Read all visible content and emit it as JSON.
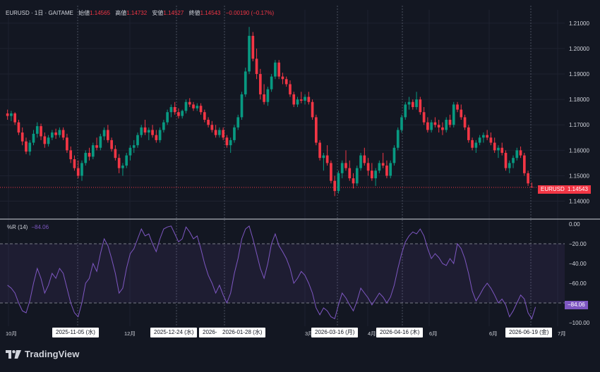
{
  "header": {
    "symbol": "EURUSD · 1日 · GAITAME",
    "open_label": "始値",
    "open_value": "1.14565",
    "high_label": "高値",
    "high_value": "1.14732",
    "low_label": "安値",
    "low_value": "1.14527",
    "close_label": "終値",
    "close_value": "1.14543",
    "change": "−0.00190 (−0.17%)"
  },
  "price_axis": {
    "ticks": [
      "1.21000",
      "1.20000",
      "1.19000",
      "1.18000",
      "1.17000",
      "1.16000",
      "1.15000",
      "1.14000"
    ],
    "min": 1.136,
    "max": 1.213
  },
  "last_price": {
    "symbol_tag": "EURUSD",
    "value": "1.14543",
    "numeric": 1.14543
  },
  "indicator": {
    "name": "%R (14)",
    "value": "−84.06",
    "ticks": [
      "0.00",
      "−20.00",
      "−40.00",
      "−60.00",
      "−80.00",
      "−100.00"
    ],
    "badge": "−84.06",
    "badge_numeric": -84.06,
    "upper_band": -20,
    "lower_band": -80,
    "min": -100,
    "max": 0
  },
  "time_axis": {
    "months": [
      "10月",
      "12月",
      "3月",
      "4月",
      "6月",
      "6月",
      "7月"
    ],
    "crosshair_dates": [
      "2025-11-05 (水)",
      "2025-12-24 (水)",
      "2026-",
      "2026-01-28 (水)",
      "2026-03-16 (月)",
      "2026-04-16 (木)",
      "2026-06-19 (金)"
    ]
  },
  "branding": {
    "logo_text": "TradingView"
  },
  "colors": {
    "up": "#089981",
    "down": "#f23645",
    "indicator": "#7e57c2",
    "background": "#131722"
  },
  "chart_data": {
    "type": "candlestick",
    "symbol": "EURUSD",
    "ohlc": [
      {
        "o": 1.1745,
        "h": 1.176,
        "l": 1.172,
        "c": 1.1735
      },
      {
        "o": 1.1735,
        "h": 1.1755,
        "l": 1.1715,
        "c": 1.1745
      },
      {
        "o": 1.1745,
        "h": 1.175,
        "l": 1.17,
        "c": 1.171
      },
      {
        "o": 1.171,
        "h": 1.172,
        "l": 1.166,
        "c": 1.167
      },
      {
        "o": 1.167,
        "h": 1.169,
        "l": 1.162,
        "c": 1.1635
      },
      {
        "o": 1.1635,
        "h": 1.165,
        "l": 1.1585,
        "c": 1.1595
      },
      {
        "o": 1.1595,
        "h": 1.164,
        "l": 1.158,
        "c": 1.163
      },
      {
        "o": 1.163,
        "h": 1.168,
        "l": 1.162,
        "c": 1.1665
      },
      {
        "o": 1.1665,
        "h": 1.171,
        "l": 1.165,
        "c": 1.1695
      },
      {
        "o": 1.1695,
        "h": 1.1705,
        "l": 1.164,
        "c": 1.1655
      },
      {
        "o": 1.1655,
        "h": 1.167,
        "l": 1.161,
        "c": 1.1625
      },
      {
        "o": 1.1625,
        "h": 1.166,
        "l": 1.1615,
        "c": 1.165
      },
      {
        "o": 1.165,
        "h": 1.168,
        "l": 1.164,
        "c": 1.167
      },
      {
        "o": 1.167,
        "h": 1.1685,
        "l": 1.1645,
        "c": 1.166
      },
      {
        "o": 1.166,
        "h": 1.169,
        "l": 1.165,
        "c": 1.168
      },
      {
        "o": 1.168,
        "h": 1.169,
        "l": 1.164,
        "c": 1.165
      },
      {
        "o": 1.165,
        "h": 1.1665,
        "l": 1.159,
        "c": 1.16
      },
      {
        "o": 1.16,
        "h": 1.1615,
        "l": 1.155,
        "c": 1.1565
      },
      {
        "o": 1.1565,
        "h": 1.158,
        "l": 1.152,
        "c": 1.153
      },
      {
        "o": 1.153,
        "h": 1.156,
        "l": 1.149,
        "c": 1.15
      },
      {
        "o": 1.15,
        "h": 1.156,
        "l": 1.148,
        "c": 1.155
      },
      {
        "o": 1.155,
        "h": 1.16,
        "l": 1.154,
        "c": 1.159
      },
      {
        "o": 1.159,
        "h": 1.161,
        "l": 1.156,
        "c": 1.1575
      },
      {
        "o": 1.1575,
        "h": 1.163,
        "l": 1.1565,
        "c": 1.162
      },
      {
        "o": 1.162,
        "h": 1.165,
        "l": 1.16,
        "c": 1.161
      },
      {
        "o": 1.161,
        "h": 1.1665,
        "l": 1.16,
        "c": 1.1655
      },
      {
        "o": 1.1655,
        "h": 1.169,
        "l": 1.164,
        "c": 1.168
      },
      {
        "o": 1.168,
        "h": 1.17,
        "l": 1.163,
        "c": 1.164
      },
      {
        "o": 1.164,
        "h": 1.165,
        "l": 1.1595,
        "c": 1.1605
      },
      {
        "o": 1.1605,
        "h": 1.162,
        "l": 1.156,
        "c": 1.157
      },
      {
        "o": 1.157,
        "h": 1.1585,
        "l": 1.151,
        "c": 1.153
      },
      {
        "o": 1.153,
        "h": 1.155,
        "l": 1.15,
        "c": 1.154
      },
      {
        "o": 1.154,
        "h": 1.159,
        "l": 1.153,
        "c": 1.158
      },
      {
        "o": 1.158,
        "h": 1.162,
        "l": 1.156,
        "c": 1.161
      },
      {
        "o": 1.161,
        "h": 1.164,
        "l": 1.159,
        "c": 1.162
      },
      {
        "o": 1.162,
        "h": 1.167,
        "l": 1.161,
        "c": 1.166
      },
      {
        "o": 1.166,
        "h": 1.17,
        "l": 1.165,
        "c": 1.169
      },
      {
        "o": 1.169,
        "h": 1.172,
        "l": 1.166,
        "c": 1.167
      },
      {
        "o": 1.167,
        "h": 1.169,
        "l": 1.164,
        "c": 1.168
      },
      {
        "o": 1.168,
        "h": 1.17,
        "l": 1.165,
        "c": 1.166
      },
      {
        "o": 1.166,
        "h": 1.168,
        "l": 1.163,
        "c": 1.164
      },
      {
        "o": 1.164,
        "h": 1.169,
        "l": 1.163,
        "c": 1.168
      },
      {
        "o": 1.168,
        "h": 1.172,
        "l": 1.167,
        "c": 1.171
      },
      {
        "o": 1.171,
        "h": 1.176,
        "l": 1.17,
        "c": 1.175
      },
      {
        "o": 1.175,
        "h": 1.178,
        "l": 1.173,
        "c": 1.177
      },
      {
        "o": 1.177,
        "h": 1.179,
        "l": 1.174,
        "c": 1.175
      },
      {
        "o": 1.175,
        "h": 1.1765,
        "l": 1.1725,
        "c": 1.1735
      },
      {
        "o": 1.1735,
        "h": 1.176,
        "l": 1.1725,
        "c": 1.1755
      },
      {
        "o": 1.1755,
        "h": 1.18,
        "l": 1.1745,
        "c": 1.179
      },
      {
        "o": 1.179,
        "h": 1.1805,
        "l": 1.177,
        "c": 1.178
      },
      {
        "o": 1.178,
        "h": 1.179,
        "l": 1.1755,
        "c": 1.1765
      },
      {
        "o": 1.1765,
        "h": 1.1785,
        "l": 1.1755,
        "c": 1.1775
      },
      {
        "o": 1.1775,
        "h": 1.1785,
        "l": 1.174,
        "c": 1.175
      },
      {
        "o": 1.175,
        "h": 1.176,
        "l": 1.171,
        "c": 1.172
      },
      {
        "o": 1.172,
        "h": 1.173,
        "l": 1.169,
        "c": 1.17
      },
      {
        "o": 1.17,
        "h": 1.1715,
        "l": 1.167,
        "c": 1.168
      },
      {
        "o": 1.168,
        "h": 1.17,
        "l": 1.165,
        "c": 1.166
      },
      {
        "o": 1.166,
        "h": 1.169,
        "l": 1.165,
        "c": 1.168
      },
      {
        "o": 1.168,
        "h": 1.169,
        "l": 1.164,
        "c": 1.165
      },
      {
        "o": 1.165,
        "h": 1.166,
        "l": 1.161,
        "c": 1.162
      },
      {
        "o": 1.162,
        "h": 1.165,
        "l": 1.159,
        "c": 1.164
      },
      {
        "o": 1.164,
        "h": 1.17,
        "l": 1.163,
        "c": 1.169
      },
      {
        "o": 1.169,
        "h": 1.174,
        "l": 1.168,
        "c": 1.173
      },
      {
        "o": 1.173,
        "h": 1.183,
        "l": 1.172,
        "c": 1.182
      },
      {
        "o": 1.182,
        "h": 1.1925,
        "l": 1.181,
        "c": 1.191
      },
      {
        "o": 1.191,
        "h": 1.2085,
        "l": 1.19,
        "c": 1.205
      },
      {
        "o": 1.205,
        "h": 1.2065,
        "l": 1.195,
        "c": 1.196
      },
      {
        "o": 1.196,
        "h": 1.2,
        "l": 1.188,
        "c": 1.19
      },
      {
        "o": 1.19,
        "h": 1.192,
        "l": 1.18,
        "c": 1.182
      },
      {
        "o": 1.182,
        "h": 1.186,
        "l": 1.178,
        "c": 1.179
      },
      {
        "o": 1.179,
        "h": 1.185,
        "l": 1.1775,
        "c": 1.184
      },
      {
        "o": 1.184,
        "h": 1.19,
        "l": 1.183,
        "c": 1.189
      },
      {
        "o": 1.189,
        "h": 1.1955,
        "l": 1.188,
        "c": 1.1945
      },
      {
        "o": 1.1945,
        "h": 1.1955,
        "l": 1.188,
        "c": 1.189
      },
      {
        "o": 1.189,
        "h": 1.1905,
        "l": 1.186,
        "c": 1.188
      },
      {
        "o": 1.188,
        "h": 1.189,
        "l": 1.185,
        "c": 1.186
      },
      {
        "o": 1.186,
        "h": 1.1875,
        "l": 1.181,
        "c": 1.182
      },
      {
        "o": 1.182,
        "h": 1.183,
        "l": 1.177,
        "c": 1.178
      },
      {
        "o": 1.178,
        "h": 1.181,
        "l": 1.177,
        "c": 1.18
      },
      {
        "o": 1.18,
        "h": 1.183,
        "l": 1.1785,
        "c": 1.1795
      },
      {
        "o": 1.1795,
        "h": 1.182,
        "l": 1.178,
        "c": 1.181
      },
      {
        "o": 1.181,
        "h": 1.183,
        "l": 1.178,
        "c": 1.179
      },
      {
        "o": 1.179,
        "h": 1.18,
        "l": 1.172,
        "c": 1.173
      },
      {
        "o": 1.173,
        "h": 1.174,
        "l": 1.162,
        "c": 1.163
      },
      {
        "o": 1.163,
        "h": 1.164,
        "l": 1.156,
        "c": 1.157
      },
      {
        "o": 1.157,
        "h": 1.159,
        "l": 1.152,
        "c": 1.158
      },
      {
        "o": 1.158,
        "h": 1.162,
        "l": 1.154,
        "c": 1.155
      },
      {
        "o": 1.155,
        "h": 1.156,
        "l": 1.147,
        "c": 1.148
      },
      {
        "o": 1.148,
        "h": 1.15,
        "l": 1.142,
        "c": 1.144
      },
      {
        "o": 1.144,
        "h": 1.152,
        "l": 1.143,
        "c": 1.151
      },
      {
        "o": 1.151,
        "h": 1.156,
        "l": 1.149,
        "c": 1.155
      },
      {
        "o": 1.155,
        "h": 1.16,
        "l": 1.152,
        "c": 1.153
      },
      {
        "o": 1.153,
        "h": 1.156,
        "l": 1.148,
        "c": 1.149
      },
      {
        "o": 1.149,
        "h": 1.151,
        "l": 1.145,
        "c": 1.147
      },
      {
        "o": 1.147,
        "h": 1.154,
        "l": 1.146,
        "c": 1.153
      },
      {
        "o": 1.153,
        "h": 1.159,
        "l": 1.152,
        "c": 1.158
      },
      {
        "o": 1.158,
        "h": 1.161,
        "l": 1.154,
        "c": 1.155
      },
      {
        "o": 1.155,
        "h": 1.157,
        "l": 1.15,
        "c": 1.152
      },
      {
        "o": 1.152,
        "h": 1.155,
        "l": 1.148,
        "c": 1.149
      },
      {
        "o": 1.149,
        "h": 1.153,
        "l": 1.146,
        "c": 1.152
      },
      {
        "o": 1.152,
        "h": 1.156,
        "l": 1.151,
        "c": 1.155
      },
      {
        "o": 1.155,
        "h": 1.159,
        "l": 1.153,
        "c": 1.154
      },
      {
        "o": 1.154,
        "h": 1.156,
        "l": 1.149,
        "c": 1.15
      },
      {
        "o": 1.15,
        "h": 1.156,
        "l": 1.149,
        "c": 1.155
      },
      {
        "o": 1.155,
        "h": 1.162,
        "l": 1.154,
        "c": 1.161
      },
      {
        "o": 1.161,
        "h": 1.169,
        "l": 1.16,
        "c": 1.168
      },
      {
        "o": 1.168,
        "h": 1.174,
        "l": 1.167,
        "c": 1.173
      },
      {
        "o": 1.173,
        "h": 1.179,
        "l": 1.172,
        "c": 1.178
      },
      {
        "o": 1.178,
        "h": 1.181,
        "l": 1.176,
        "c": 1.179
      },
      {
        "o": 1.179,
        "h": 1.18,
        "l": 1.176,
        "c": 1.177
      },
      {
        "o": 1.177,
        "h": 1.183,
        "l": 1.176,
        "c": 1.18
      },
      {
        "o": 1.18,
        "h": 1.181,
        "l": 1.174,
        "c": 1.175
      },
      {
        "o": 1.175,
        "h": 1.177,
        "l": 1.17,
        "c": 1.171
      },
      {
        "o": 1.171,
        "h": 1.173,
        "l": 1.167,
        "c": 1.168
      },
      {
        "o": 1.168,
        "h": 1.172,
        "l": 1.167,
        "c": 1.171
      },
      {
        "o": 1.171,
        "h": 1.173,
        "l": 1.169,
        "c": 1.17
      },
      {
        "o": 1.17,
        "h": 1.172,
        "l": 1.167,
        "c": 1.169
      },
      {
        "o": 1.169,
        "h": 1.171,
        "l": 1.166,
        "c": 1.168
      },
      {
        "o": 1.168,
        "h": 1.173,
        "l": 1.167,
        "c": 1.172
      },
      {
        "o": 1.172,
        "h": 1.174,
        "l": 1.169,
        "c": 1.17
      },
      {
        "o": 1.17,
        "h": 1.179,
        "l": 1.169,
        "c": 1.178
      },
      {
        "o": 1.178,
        "h": 1.179,
        "l": 1.175,
        "c": 1.176
      },
      {
        "o": 1.176,
        "h": 1.178,
        "l": 1.172,
        "c": 1.173
      },
      {
        "o": 1.173,
        "h": 1.174,
        "l": 1.168,
        "c": 1.169
      },
      {
        "o": 1.169,
        "h": 1.17,
        "l": 1.163,
        "c": 1.164
      },
      {
        "o": 1.164,
        "h": 1.165,
        "l": 1.16,
        "c": 1.161
      },
      {
        "o": 1.161,
        "h": 1.164,
        "l": 1.159,
        "c": 1.163
      },
      {
        "o": 1.163,
        "h": 1.166,
        "l": 1.162,
        "c": 1.165
      },
      {
        "o": 1.165,
        "h": 1.167,
        "l": 1.163,
        "c": 1.166
      },
      {
        "o": 1.166,
        "h": 1.168,
        "l": 1.164,
        "c": 1.165
      },
      {
        "o": 1.165,
        "h": 1.167,
        "l": 1.162,
        "c": 1.163
      },
      {
        "o": 1.163,
        "h": 1.165,
        "l": 1.159,
        "c": 1.16
      },
      {
        "o": 1.16,
        "h": 1.162,
        "l": 1.157,
        "c": 1.161
      },
      {
        "o": 1.161,
        "h": 1.163,
        "l": 1.158,
        "c": 1.159
      },
      {
        "o": 1.159,
        "h": 1.16,
        "l": 1.152,
        "c": 1.153
      },
      {
        "o": 1.153,
        "h": 1.156,
        "l": 1.151,
        "c": 1.155
      },
      {
        "o": 1.155,
        "h": 1.158,
        "l": 1.153,
        "c": 1.157
      },
      {
        "o": 1.157,
        "h": 1.161,
        "l": 1.156,
        "c": 1.16
      },
      {
        "o": 1.16,
        "h": 1.1615,
        "l": 1.157,
        "c": 1.158
      },
      {
        "o": 1.158,
        "h": 1.159,
        "l": 1.15,
        "c": 1.151
      },
      {
        "o": 1.151,
        "h": 1.152,
        "l": 1.146,
        "c": 1.147
      },
      {
        "o": 1.14565,
        "h": 1.14732,
        "l": 1.14527,
        "c": 1.14543
      }
    ],
    "williams_r": [
      -62,
      -65,
      -70,
      -80,
      -88,
      -90,
      -78,
      -60,
      -45,
      -55,
      -70,
      -62,
      -50,
      -55,
      -45,
      -50,
      -65,
      -80,
      -90,
      -94,
      -80,
      -60,
      -55,
      -40,
      -48,
      -30,
      -15,
      -22,
      -35,
      -50,
      -70,
      -65,
      -45,
      -30,
      -25,
      -15,
      -5,
      -12,
      -10,
      -20,
      -28,
      -15,
      -5,
      -3,
      -2,
      -10,
      -18,
      -15,
      -3,
      -8,
      -15,
      -12,
      -25,
      -40,
      -52,
      -60,
      -70,
      -62,
      -72,
      -80,
      -70,
      -50,
      -35,
      -15,
      -5,
      -2,
      -15,
      -30,
      -45,
      -55,
      -40,
      -20,
      -10,
      -22,
      -28,
      -35,
      -45,
      -60,
      -55,
      -48,
      -52,
      -60,
      -70,
      -85,
      -92,
      -85,
      -88,
      -94,
      -96,
      -82,
      -70,
      -75,
      -82,
      -88,
      -78,
      -65,
      -70,
      -75,
      -82,
      -76,
      -70,
      -74,
      -80,
      -74,
      -62,
      -45,
      -30,
      -18,
      -12,
      -8,
      -10,
      -5,
      -12,
      -25,
      -35,
      -30,
      -34,
      -40,
      -42,
      -35,
      -40,
      -20,
      -25,
      -35,
      -50,
      -68,
      -78,
      -72,
      -65,
      -60,
      -65,
      -72,
      -80,
      -76,
      -82,
      -94,
      -88,
      -80,
      -72,
      -76,
      -90,
      -96,
      -84.06
    ]
  }
}
